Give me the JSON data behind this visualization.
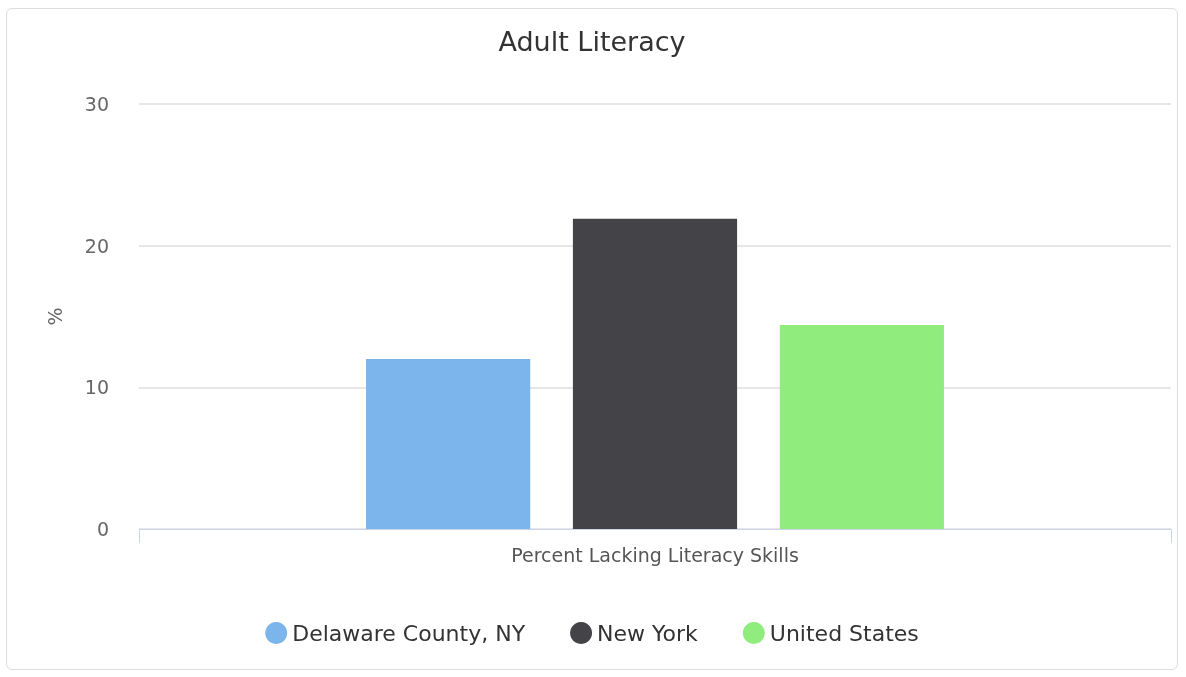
{
  "chart_data": {
    "type": "bar",
    "title": "Adult Literacy",
    "ylabel": "%",
    "categories": [
      "Percent Lacking Literacy Skills"
    ],
    "series": [
      {
        "name": "Delaware County, NY",
        "color": "#7cb5ec",
        "values": [
          12
        ]
      },
      {
        "name": "New York",
        "color": "#434348",
        "values": [
          21.9
        ]
      },
      {
        "name": "United States",
        "color": "#90ed7d",
        "values": [
          14.4
        ]
      }
    ],
    "ylim": [
      0,
      30
    ],
    "yticks": [
      0,
      10,
      20,
      30
    ],
    "grid": "y",
    "legend": "bottom"
  }
}
